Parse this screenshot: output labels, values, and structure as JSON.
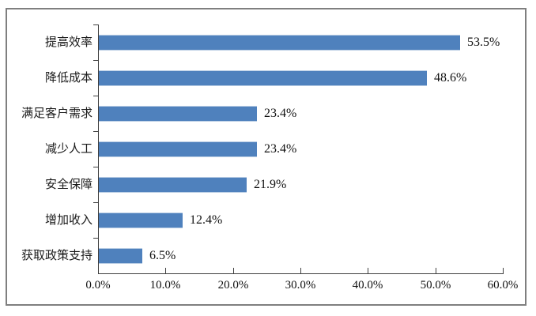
{
  "chart_data": {
    "type": "bar",
    "orientation": "horizontal",
    "title": "",
    "xlabel": "",
    "ylabel": "",
    "categories": [
      "提高效率",
      "降低成本",
      "满足客户需求",
      "减少人工",
      "安全保障",
      "增加收入",
      "获取政策支持"
    ],
    "values": [
      53.5,
      48.6,
      23.4,
      23.4,
      21.9,
      12.4,
      6.5
    ],
    "value_labels": [
      "53.5%",
      "48.6%",
      "23.4%",
      "23.4%",
      "21.9%",
      "12.4%",
      "6.5%"
    ],
    "xlim": [
      0,
      60
    ],
    "x_tick_step": 10,
    "x_tick_labels": [
      "0.0%",
      "10.0%",
      "20.0%",
      "30.0%",
      "40.0%",
      "50.0%",
      "60.0%"
    ],
    "grid": false,
    "legend": false,
    "colors": {
      "bar": "#4F81BD",
      "bar_edge": "#b9cde4",
      "axis": "#3f3f3f",
      "text": "#1a1a1a",
      "frame_border": "#7f7f7f",
      "background": "#ffffff"
    }
  }
}
